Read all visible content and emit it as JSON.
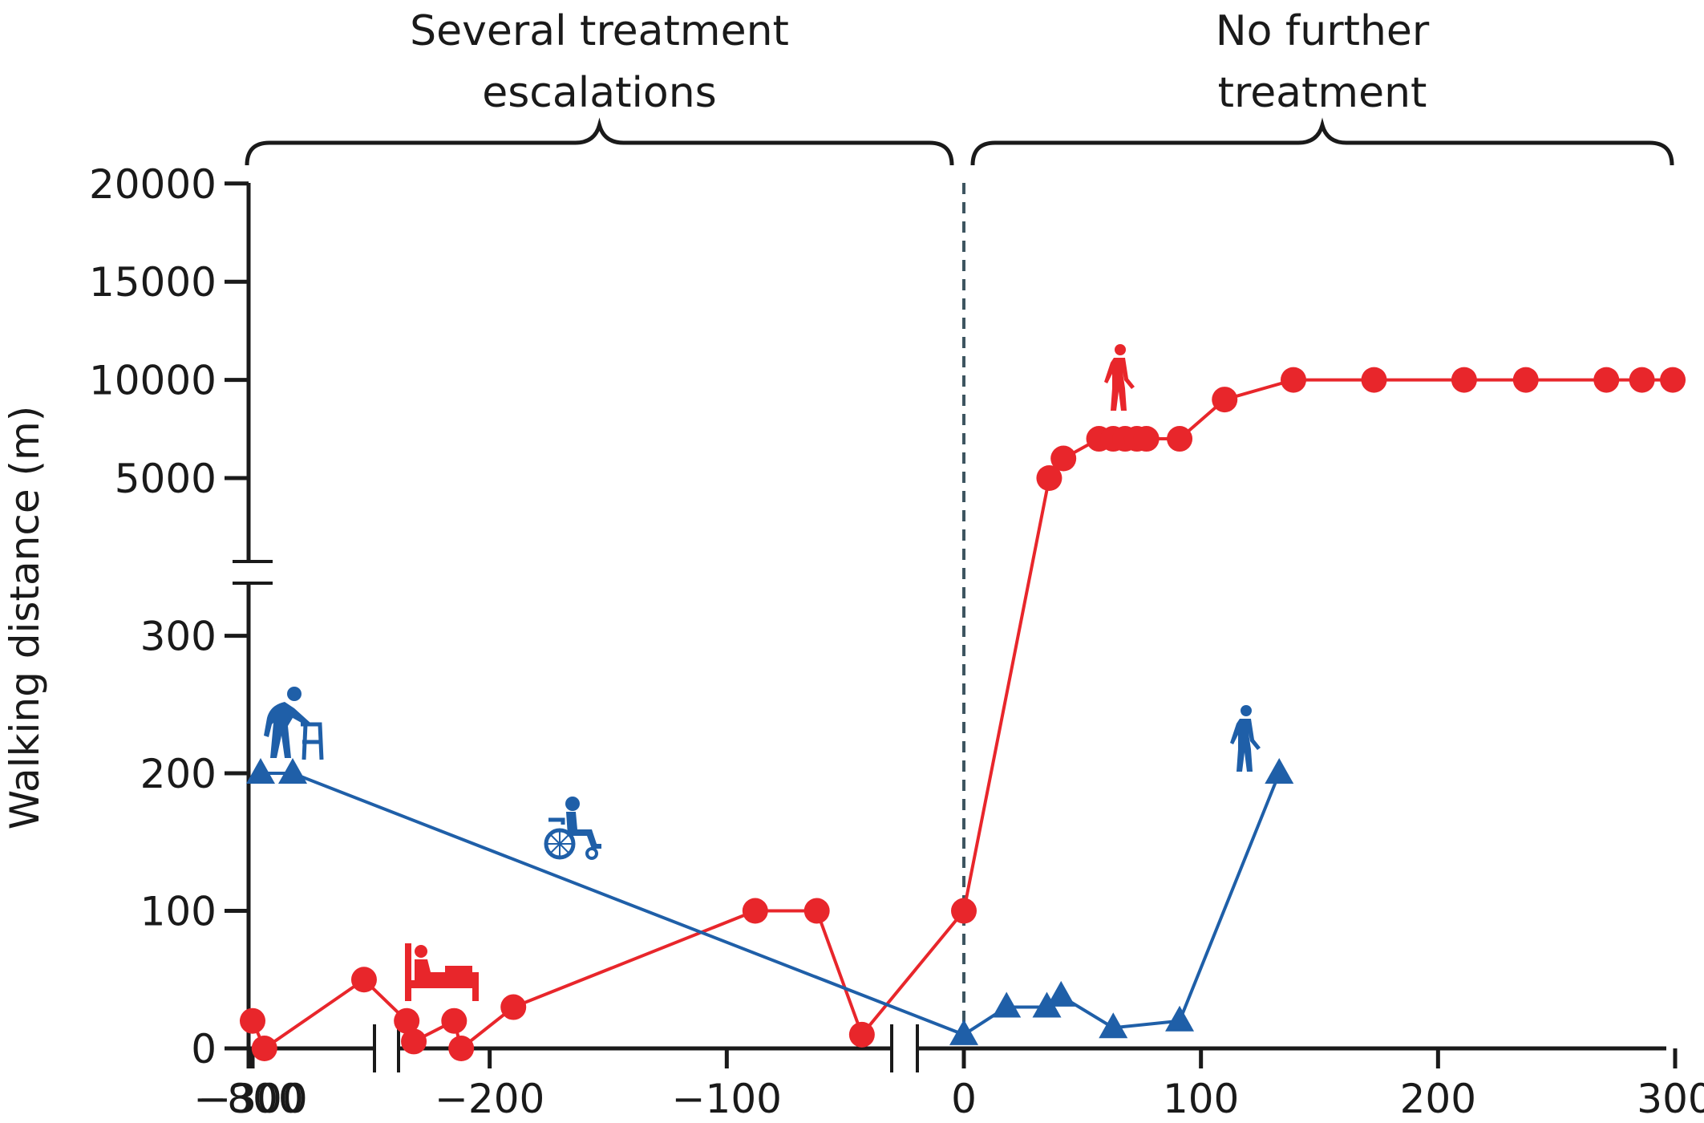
{
  "chart_data": {
    "type": "line",
    "xlabel": "",
    "ylabel": "Walking distance (m)",
    "x_ticks": [
      "−800",
      "−300",
      "−200",
      "−100",
      "0",
      "100",
      "200",
      "300"
    ],
    "y_ticks": [
      "0",
      "100",
      "200",
      "300",
      "5000",
      "10000",
      "15000",
      "20000"
    ],
    "y_broken_axis": true,
    "x_broken_axis": true,
    "reference_line_x": 0,
    "period_labels": [
      {
        "text_lines": [
          "Several treatment",
          "escalations"
        ]
      },
      {
        "text_lines": [
          "No further",
          "treatment"
        ]
      }
    ],
    "series": [
      {
        "color": "#e8262b",
        "marker": "circle",
        "points": [
          {
            "x": -300,
            "y": 20
          },
          {
            "x": -295,
            "y": 0
          },
          {
            "x": -253,
            "y": 50
          },
          {
            "x": -235,
            "y": 20
          },
          {
            "x": -232,
            "y": 5
          },
          {
            "x": -215,
            "y": 20
          },
          {
            "x": -212,
            "y": 0
          },
          {
            "x": -190,
            "y": 30
          },
          {
            "x": -88,
            "y": 100
          },
          {
            "x": -62,
            "y": 100
          },
          {
            "x": -43,
            "y": 10
          },
          {
            "x": 0,
            "y": 100
          },
          {
            "x": 36,
            "y": 5000
          },
          {
            "x": 42,
            "y": 6000
          },
          {
            "x": 57,
            "y": 7000
          },
          {
            "x": 63,
            "y": 7000
          },
          {
            "x": 68,
            "y": 7000
          },
          {
            "x": 73,
            "y": 7000
          },
          {
            "x": 77,
            "y": 7000
          },
          {
            "x": 91,
            "y": 7000
          },
          {
            "x": 110,
            "y": 9000
          },
          {
            "x": 139,
            "y": 10000
          },
          {
            "x": 173,
            "y": 10000
          },
          {
            "x": 211,
            "y": 10000
          },
          {
            "x": 237,
            "y": 10000
          },
          {
            "x": 271,
            "y": 10000
          },
          {
            "x": 286,
            "y": 10000
          },
          {
            "x": 299,
            "y": 10000
          }
        ]
      },
      {
        "color": "#1f5fa8",
        "marker": "triangle",
        "points": [
          {
            "x": -800,
            "y": 200
          },
          {
            "x": -740,
            "y": 200
          },
          {
            "x": 0,
            "y": 10
          },
          {
            "x": 18,
            "y": 30
          },
          {
            "x": 35,
            "y": 30
          },
          {
            "x": 41,
            "y": 38
          },
          {
            "x": 63,
            "y": 15
          },
          {
            "x": 91,
            "y": 20
          },
          {
            "x": 133,
            "y": 200
          }
        ]
      }
    ],
    "icons": [
      {
        "name": "walker-person-icon",
        "color": "#1f5fa8"
      },
      {
        "name": "wheelchair-icon",
        "color": "#1f5fa8"
      },
      {
        "name": "walking-person-icon",
        "color": "#1f5fa8"
      },
      {
        "name": "bed-icon",
        "color": "#e8262b"
      },
      {
        "name": "walking-person-icon",
        "color": "#e8262b"
      }
    ],
    "colors": {
      "red": "#e8262b",
      "blue": "#1f5fa8",
      "axis": "#1a1a1a",
      "ref_line": "#3d5560"
    }
  }
}
